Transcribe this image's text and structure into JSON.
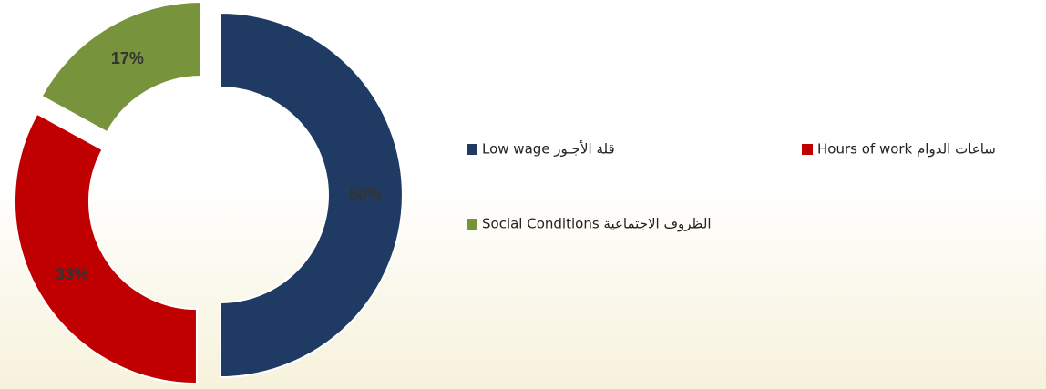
{
  "chart_data": {
    "type": "donut",
    "categories": [
      "Low wage قلة الأجـور",
      "Hours of work ساعات الدوام",
      "Social Conditions الظروف الاجتماعية"
    ],
    "values": [
      50,
      33,
      17
    ],
    "value_labels": [
      "50%",
      "33%",
      "17%"
    ],
    "colors": [
      "#1f3b63",
      "#c00000",
      "#77933c"
    ],
    "legend": "right"
  }
}
